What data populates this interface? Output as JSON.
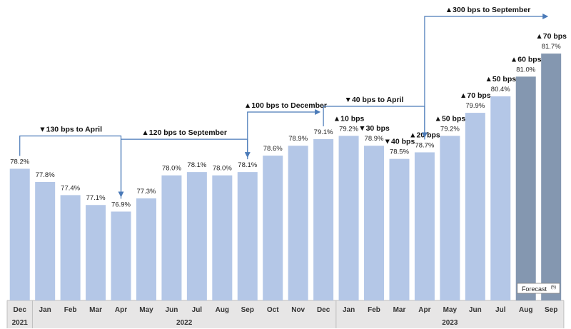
{
  "chart_data": {
    "type": "bar",
    "categories": [
      "Dec",
      "Jan",
      "Feb",
      "Mar",
      "Apr",
      "May",
      "Jun",
      "Jul",
      "Aug",
      "Sep",
      "Oct",
      "Nov",
      "Dec",
      "Jan",
      "Feb",
      "Mar",
      "Apr",
      "May",
      "Jun",
      "Jul",
      "Aug",
      "Sep"
    ],
    "years": [
      {
        "label": "2021",
        "first": 0,
        "last": 0
      },
      {
        "label": "2022",
        "first": 1,
        "last": 12
      },
      {
        "label": "2023",
        "first": 13,
        "last": 21
      }
    ],
    "values": [
      78.2,
      77.8,
      77.4,
      77.1,
      76.9,
      77.3,
      78.0,
      78.1,
      78.0,
      78.1,
      78.6,
      78.9,
      79.1,
      79.2,
      78.9,
      78.5,
      78.7,
      79.2,
      79.9,
      80.4,
      81.0,
      81.7
    ],
    "value_labels": [
      "78.2%",
      "77.8%",
      "77.4%",
      "77.1%",
      "76.9%",
      "77.3%",
      "78.0%",
      "78.1%",
      "78.0%",
      "78.1%",
      "78.6%",
      "78.9%",
      "79.1%",
      "79.2%",
      "78.9%",
      "78.5%",
      "78.7%",
      "79.2%",
      "79.9%",
      "80.4%",
      "81.0%",
      "81.7%"
    ],
    "forecast_indices": [
      20,
      21
    ],
    "forecast_label": "Forecast",
    "forecast_note": "(5)",
    "colors": {
      "actual": "#b4c7e7",
      "forecast": "#8497b0",
      "arrow": "#4a7ab8",
      "axis_band": "#e7e6e6"
    },
    "monthly_changes": [
      {
        "index": 13,
        "text": "▲10 bps"
      },
      {
        "index": 14,
        "text": "▼30 bps"
      },
      {
        "index": 15,
        "text": "▼40 bps"
      },
      {
        "index": 16,
        "text": "▲20 bps"
      },
      {
        "index": 17,
        "text": "▲50 bps"
      },
      {
        "index": 18,
        "text": "▲70 bps"
      },
      {
        "index": 19,
        "text": "▲50 bps"
      },
      {
        "index": 20,
        "text": "▲60 bps"
      },
      {
        "index": 21,
        "text": "▲70 bps"
      }
    ],
    "period_changes": [
      {
        "from": 0,
        "to": 4,
        "text": "▼130 bps to April"
      },
      {
        "from": 4,
        "to": 9,
        "text": "▲120 bps to September"
      },
      {
        "from": 9,
        "to": 12,
        "text": "▲100 bps to December"
      },
      {
        "from": 12,
        "to": 16,
        "text": "▼40 bps to April"
      },
      {
        "from": 16,
        "to": 21,
        "text": "▲300 bps to September"
      }
    ],
    "ylim": [
      74.2,
      82.2
    ],
    "title": "",
    "xlabel": "",
    "ylabel": "",
    "grid": false,
    "legend": "none"
  }
}
